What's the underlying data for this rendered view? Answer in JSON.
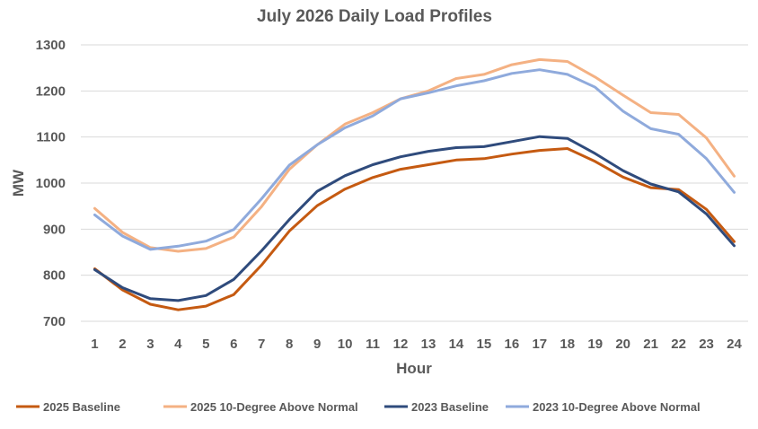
{
  "chart_data": {
    "type": "line",
    "title": "July 2026 Daily Load Profiles",
    "xlabel": "Hour",
    "ylabel": "MW",
    "x": [
      1,
      2,
      3,
      4,
      5,
      6,
      7,
      8,
      9,
      10,
      11,
      12,
      13,
      14,
      15,
      16,
      17,
      18,
      19,
      20,
      21,
      22,
      23,
      24
    ],
    "ylim": [
      700,
      1300
    ],
    "yticks": [
      700,
      800,
      900,
      1000,
      1100,
      1200,
      1300
    ],
    "grid": true,
    "legend_position": "bottom",
    "series": [
      {
        "name": "2025 Baseline",
        "color": "#c55a11",
        "values": [
          814,
          768,
          737,
          725,
          733,
          758,
          822,
          896,
          951,
          987,
          1012,
          1030,
          1040,
          1050,
          1053,
          1063,
          1071,
          1075,
          1047,
          1013,
          990,
          986,
          943,
          873
        ]
      },
      {
        "name": "2025 10-Degree Above Normal",
        "color": "#f4b183",
        "values": [
          945,
          893,
          860,
          852,
          858,
          883,
          949,
          1030,
          1083,
          1128,
          1153,
          1183,
          1200,
          1227,
          1236,
          1257,
          1268,
          1264,
          1230,
          1191,
          1153,
          1149,
          1098,
          1015
        ]
      },
      {
        "name": "2023 Baseline",
        "color": "#2f4b7c",
        "values": [
          812,
          773,
          749,
          745,
          756,
          791,
          853,
          921,
          982,
          1016,
          1040,
          1057,
          1069,
          1077,
          1079,
          1090,
          1101,
          1097,
          1064,
          1027,
          998,
          981,
          933,
          864
        ]
      },
      {
        "name": "2023 10-Degree Above Normal",
        "color": "#8faadc",
        "values": [
          931,
          885,
          856,
          863,
          874,
          899,
          966,
          1039,
          1083,
          1120,
          1146,
          1183,
          1196,
          1211,
          1222,
          1238,
          1246,
          1236,
          1208,
          1156,
          1118,
          1106,
          1053,
          980
        ]
      }
    ]
  }
}
